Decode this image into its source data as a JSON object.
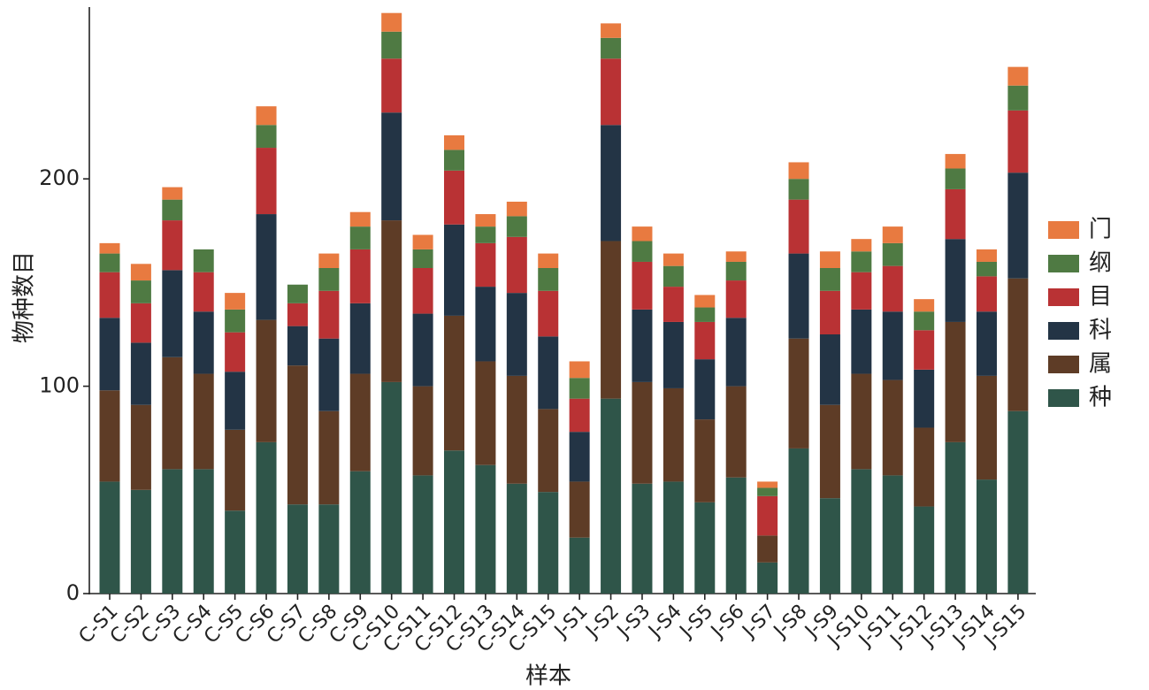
{
  "chart_data": {
    "type": "stacked-bar",
    "x_label": "样本",
    "y_label": "物种数目",
    "categories": [
      "C-S1",
      "C-S2",
      "C-S3",
      "C-S4",
      "C-S5",
      "C-S6",
      "C-S7",
      "C-S8",
      "C-S9",
      "C-S10",
      "C-S11",
      "C-S12",
      "C-S13",
      "C-S14",
      "C-S15",
      "J-S1",
      "J-S2",
      "J-S3",
      "J-S4",
      "J-S5",
      "J-S6",
      "J-S7",
      "J-S8",
      "J-S9",
      "J-S10",
      "J-S11",
      "J-S12",
      "J-S13",
      "J-S14",
      "J-S15"
    ],
    "series": [
      {
        "name": "种",
        "color": "#2f5549",
        "values": [
          54,
          50,
          60,
          60,
          40,
          73,
          43,
          43,
          59,
          102,
          57,
          69,
          62,
          53,
          49,
          27,
          94,
          53,
          54,
          44,
          56,
          15,
          70,
          46,
          60,
          57,
          42,
          73,
          55,
          88
        ]
      },
      {
        "name": "属",
        "color": "#5e3c26",
        "values": [
          44,
          41,
          54,
          46,
          39,
          59,
          67,
          45,
          47,
          78,
          43,
          65,
          50,
          52,
          40,
          27,
          76,
          49,
          45,
          40,
          44,
          13,
          53,
          45,
          46,
          46,
          38,
          58,
          50,
          64
        ]
      },
      {
        "name": "科",
        "color": "#233445",
        "values": [
          35,
          30,
          42,
          30,
          28,
          51,
          19,
          35,
          34,
          52,
          35,
          44,
          36,
          40,
          35,
          24,
          56,
          35,
          32,
          29,
          33,
          0,
          41,
          34,
          31,
          33,
          28,
          40,
          31,
          51
        ]
      },
      {
        "name": "目",
        "color": "#b93234",
        "values": [
          22,
          19,
          24,
          19,
          19,
          32,
          11,
          23,
          26,
          26,
          22,
          26,
          21,
          27,
          22,
          16,
          32,
          23,
          17,
          18,
          18,
          19,
          26,
          21,
          18,
          22,
          19,
          24,
          17,
          30
        ]
      },
      {
        "name": "纲",
        "color": "#4f7a43",
        "values": [
          9,
          11,
          10,
          11,
          11,
          11,
          9,
          11,
          11,
          13,
          9,
          10,
          8,
          10,
          11,
          10,
          10,
          10,
          10,
          7,
          9,
          4,
          10,
          11,
          10,
          11,
          9,
          10,
          7,
          12
        ]
      },
      {
        "name": "门",
        "color": "#e87a40",
        "values": [
          5,
          8,
          6,
          0,
          8,
          9,
          0,
          7,
          7,
          9,
          7,
          7,
          6,
          7,
          7,
          8,
          7,
          7,
          6,
          6,
          5,
          3,
          8,
          8,
          6,
          8,
          6,
          7,
          6,
          9
        ]
      }
    ],
    "ylim": [
      0,
      282
    ],
    "yticks": [
      0,
      100,
      200
    ],
    "grid": false,
    "legend": "right"
  }
}
